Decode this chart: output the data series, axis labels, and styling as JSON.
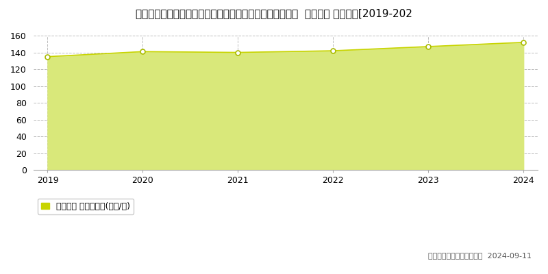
{
  "title": "埼玉県さいたま市中央区大字下落合字大原１０５０番２外  地価公示 地価推移[2019-202",
  "years": [
    2019,
    2020,
    2021,
    2022,
    2023,
    2024
  ],
  "values": [
    135,
    141,
    140,
    142,
    147,
    152
  ],
  "line_color": "#c8d400",
  "fill_color": "#d9e87a",
  "fill_alpha": 1.0,
  "marker_color": "#ffffff",
  "marker_edge_color": "#aabb00",
  "marker_size": 5,
  "ylim": [
    0,
    160
  ],
  "yticks": [
    0,
    20,
    40,
    60,
    80,
    100,
    120,
    140,
    160
  ],
  "grid_color": "#bbbbbb",
  "grid_style": "--",
  "bg_color": "#ffffff",
  "plot_bg_color": "#ffffff",
  "legend_label": "地価公示 平均坤単価(万円/坤)",
  "legend_marker_color": "#c8d400",
  "copyright_text": "（Ｃ）土地価格ドットコム  2024-09-11",
  "title_fontsize": 11,
  "tick_fontsize": 9,
  "legend_fontsize": 9,
  "copyright_fontsize": 8
}
